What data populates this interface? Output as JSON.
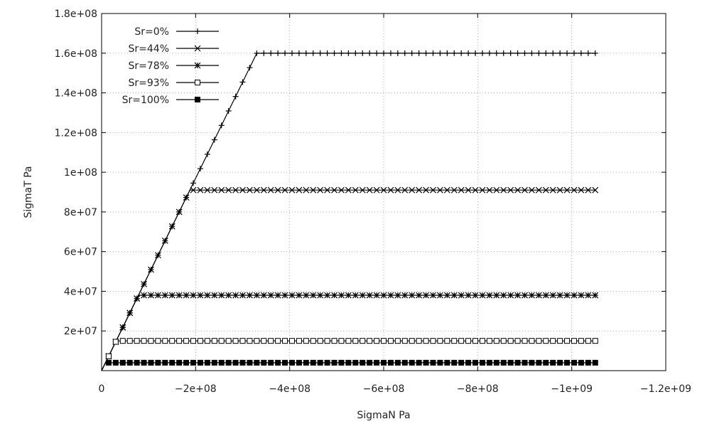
{
  "chart_data": {
    "type": "line",
    "xlabel": "SigmaN Pa",
    "ylabel": "SigmaT Pa",
    "xlim": [
      0,
      -1200000000
    ],
    "ylim": [
      0,
      180000000
    ],
    "xticks": [
      {
        "value": 0,
        "label": "0"
      },
      {
        "value": -200000000,
        "label": "−2e+08"
      },
      {
        "value": -400000000,
        "label": "−4e+08"
      },
      {
        "value": -600000000,
        "label": "−6e+08"
      },
      {
        "value": -800000000,
        "label": "−8e+08"
      },
      {
        "value": -1000000000,
        "label": "−1e+09"
      },
      {
        "value": -1200000000,
        "label": "−1.2e+09"
      }
    ],
    "yticks": [
      {
        "value": 20000000,
        "label": "2e+07"
      },
      {
        "value": 40000000,
        "label": "4e+07"
      },
      {
        "value": 60000000,
        "label": "6e+07"
      },
      {
        "value": 80000000,
        "label": "8e+07"
      },
      {
        "value": 100000000,
        "label": "1e+08"
      },
      {
        "value": 120000000,
        "label": "1.2e+08"
      },
      {
        "value": 140000000,
        "label": "1.4e+08"
      },
      {
        "value": 160000000,
        "label": "1.6e+08"
      },
      {
        "value": 180000000,
        "label": "1.8e+08"
      }
    ],
    "grid": true,
    "legend_position": "top-left",
    "x_start": 0,
    "x_end": -1050000000,
    "marker_spacing": -15000000,
    "series": [
      {
        "name": "Sr=0%",
        "marker": "plus",
        "slope": -0.4848,
        "plateau": 160000000
      },
      {
        "name": "Sr=44%",
        "marker": "cross",
        "slope": -0.4848,
        "plateau": 91000000
      },
      {
        "name": "Sr=78%",
        "marker": "star",
        "slope": -0.4848,
        "plateau": 38000000
      },
      {
        "name": "Sr=93%",
        "marker": "open-square",
        "slope": -0.4848,
        "plateau": 15000000
      },
      {
        "name": "Sr=100%",
        "marker": "filled-square",
        "slope": -0.4848,
        "plateau": 4000000
      }
    ]
  }
}
